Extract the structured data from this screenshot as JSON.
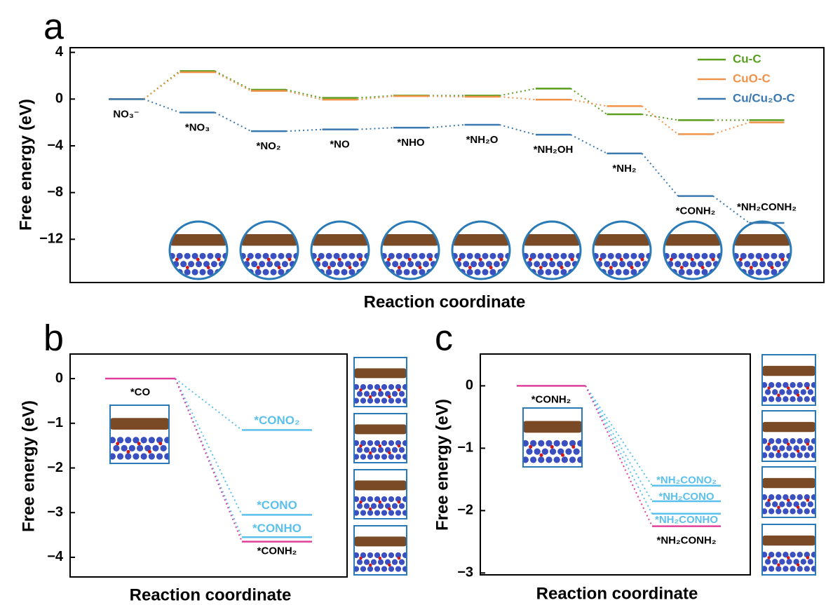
{
  "chart_data": [
    {
      "type": "energy-profile",
      "panel": "a",
      "ylabel": "Free energy (eV)",
      "xlabel": "Reaction coordinate",
      "ylim": [
        -15.7,
        4.4
      ],
      "yticks": [
        4,
        0,
        {
          "value": -4,
          "label": "−4"
        },
        {
          "value": -8,
          "label": "−8"
        },
        {
          "value": -12,
          "label": "−12"
        }
      ],
      "categories": [
        "NO₃⁻",
        "*NO₃",
        "*NO₂",
        "*NO",
        "*NHO",
        "*NH₂O",
        "*NH₂OH",
        "*NH₂",
        "*CONH₂",
        "*NH₂CONH₂"
      ],
      "series": [
        {
          "name": "Cu-C",
          "color": "#5a9e1e",
          "values": [
            0,
            2.4,
            0.8,
            0.1,
            0.3,
            0.3,
            0.9,
            -1.3,
            -1.8,
            -1.8
          ]
        },
        {
          "name": "CuO-C",
          "color": "#f0924a",
          "values": [
            0,
            2.3,
            0.7,
            -0.05,
            0.25,
            0.2,
            -0.05,
            -0.6,
            -3.0,
            -2.0
          ]
        },
        {
          "name": "Cu/Cu₂O-C",
          "color": "#3a78b0",
          "values": [
            0,
            -1.15,
            -2.75,
            -2.6,
            -2.45,
            -2.2,
            -3.05,
            -4.65,
            -8.3,
            -10.6
          ]
        }
      ],
      "legend": "upper right"
    },
    {
      "type": "energy-branch",
      "panel": "b",
      "ylabel": "Free energy (eV)",
      "xlabel": "Reaction coordinate",
      "ylim": [
        -4.44,
        0.55
      ],
      "yticks": [
        0,
        {
          "value": -1,
          "label": "−1"
        },
        {
          "value": -2,
          "label": "−2"
        },
        {
          "value": -3,
          "label": "−3"
        },
        {
          "value": -4,
          "label": "−4"
        }
      ],
      "start": {
        "label": "*CO",
        "value": 0,
        "color": "#e0409a"
      },
      "products": [
        {
          "label": "*CONO₂",
          "value": -1.15,
          "color": "#5bc0eb"
        },
        {
          "label": "*CONO",
          "value": -3.05,
          "color": "#5bc0eb"
        },
        {
          "label": "*CONHO",
          "value": -3.55,
          "color": "#5bc0eb"
        },
        {
          "label": "*CONH₂",
          "value": -3.65,
          "color": "#e0409a"
        }
      ]
    },
    {
      "type": "energy-branch",
      "panel": "c",
      "ylabel": "Free energy (eV)",
      "xlabel": "Reaction coordinate",
      "ylim": [
        -3.03,
        0.51
      ],
      "yticks": [
        0,
        {
          "value": -1,
          "label": "−1"
        },
        {
          "value": -2,
          "label": "−2"
        },
        {
          "value": -3,
          "label": "−3"
        }
      ],
      "start": {
        "label": "*CONH₂",
        "value": 0,
        "color": "#e0409a"
      },
      "products": [
        {
          "label": "*NH₂CONO₂",
          "value": -1.6,
          "color": "#5bc0eb"
        },
        {
          "label": "*NH₂CONO",
          "value": -1.85,
          "color": "#5bc0eb"
        },
        {
          "label": "*NH₂CONHO",
          "value": -2.05,
          "color": "#5bc0eb"
        },
        {
          "label": "*NH₂CONH₂",
          "value": -2.25,
          "color": "#e0409a"
        }
      ]
    }
  ]
}
